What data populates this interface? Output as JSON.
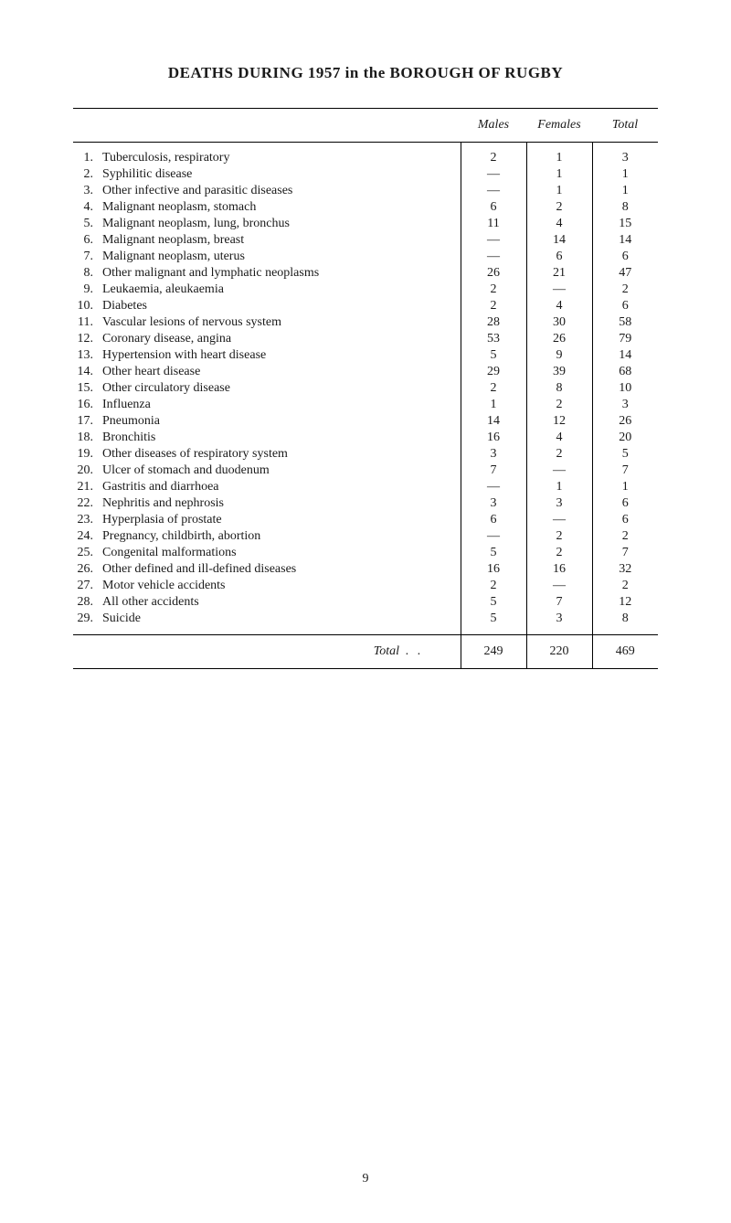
{
  "title": "DEATHS DURING 1957 in the BOROUGH OF RUGBY",
  "columns": {
    "males": "Males",
    "females": "Females",
    "total": "Total"
  },
  "rows": [
    {
      "num": "1.",
      "desc": "Tuberculosis, respiratory",
      "males": "2",
      "females": "1",
      "total": "3"
    },
    {
      "num": "2.",
      "desc": "Syphilitic disease",
      "males": "—",
      "females": "1",
      "total": "1"
    },
    {
      "num": "3.",
      "desc": "Other infective and parasitic diseases",
      "males": "—",
      "females": "1",
      "total": "1"
    },
    {
      "num": "4.",
      "desc": "Malignant neoplasm, stomach",
      "males": "6",
      "females": "2",
      "total": "8"
    },
    {
      "num": "5.",
      "desc": "Malignant neoplasm, lung, bronchus",
      "males": "11",
      "females": "4",
      "total": "15"
    },
    {
      "num": "6.",
      "desc": "Malignant neoplasm, breast",
      "males": "—",
      "females": "14",
      "total": "14"
    },
    {
      "num": "7.",
      "desc": "Malignant neoplasm, uterus",
      "males": "—",
      "females": "6",
      "total": "6"
    },
    {
      "num": "8.",
      "desc": "Other malignant and lymphatic neoplasms",
      "males": "26",
      "females": "21",
      "total": "47"
    },
    {
      "num": "9.",
      "desc": "Leukaemia, aleukaemia",
      "males": "2",
      "females": "—",
      "total": "2"
    },
    {
      "num": "10.",
      "desc": "Diabetes",
      "males": "2",
      "females": "4",
      "total": "6"
    },
    {
      "num": "11.",
      "desc": "Vascular lesions of nervous system",
      "males": "28",
      "females": "30",
      "total": "58"
    },
    {
      "num": "12.",
      "desc": "Coronary disease, angina",
      "males": "53",
      "females": "26",
      "total": "79"
    },
    {
      "num": "13.",
      "desc": "Hypertension with heart disease",
      "males": "5",
      "females": "9",
      "total": "14"
    },
    {
      "num": "14.",
      "desc": "Other heart disease",
      "males": "29",
      "females": "39",
      "total": "68"
    },
    {
      "num": "15.",
      "desc": "Other circulatory disease",
      "males": "2",
      "females": "8",
      "total": "10"
    },
    {
      "num": "16.",
      "desc": "Influenza",
      "males": "1",
      "females": "2",
      "total": "3"
    },
    {
      "num": "17.",
      "desc": "Pneumonia",
      "males": "14",
      "females": "12",
      "total": "26"
    },
    {
      "num": "18.",
      "desc": "Bronchitis",
      "males": "16",
      "females": "4",
      "total": "20"
    },
    {
      "num": "19.",
      "desc": "Other diseases of respiratory system",
      "males": "3",
      "females": "2",
      "total": "5"
    },
    {
      "num": "20.",
      "desc": "Ulcer of stomach and duodenum",
      "males": "7",
      "females": "—",
      "total": "7"
    },
    {
      "num": "21.",
      "desc": "Gastritis and diarrhoea",
      "males": "—",
      "females": "1",
      "total": "1"
    },
    {
      "num": "22.",
      "desc": "Nephritis and nephrosis",
      "males": "3",
      "females": "3",
      "total": "6"
    },
    {
      "num": "23.",
      "desc": "Hyperplasia of prostate",
      "males": "6",
      "females": "—",
      "total": "6"
    },
    {
      "num": "24.",
      "desc": "Pregnancy, childbirth, abortion",
      "males": "—",
      "females": "2",
      "total": "2"
    },
    {
      "num": "25.",
      "desc": "Congenital malformations",
      "males": "5",
      "females": "2",
      "total": "7"
    },
    {
      "num": "26.",
      "desc": "Other defined and ill-defined diseases",
      "males": "16",
      "females": "16",
      "total": "32"
    },
    {
      "num": "27.",
      "desc": "Motor vehicle accidents",
      "males": "2",
      "females": "—",
      "total": "2"
    },
    {
      "num": "28.",
      "desc": "All other accidents",
      "males": "5",
      "females": "7",
      "total": "12"
    },
    {
      "num": "29.",
      "desc": "Suicide",
      "males": "5",
      "females": "3",
      "total": "8"
    }
  ],
  "total_label": "Total",
  "totals": {
    "males": "249",
    "females": "220",
    "total": "469"
  },
  "page_number": "9"
}
